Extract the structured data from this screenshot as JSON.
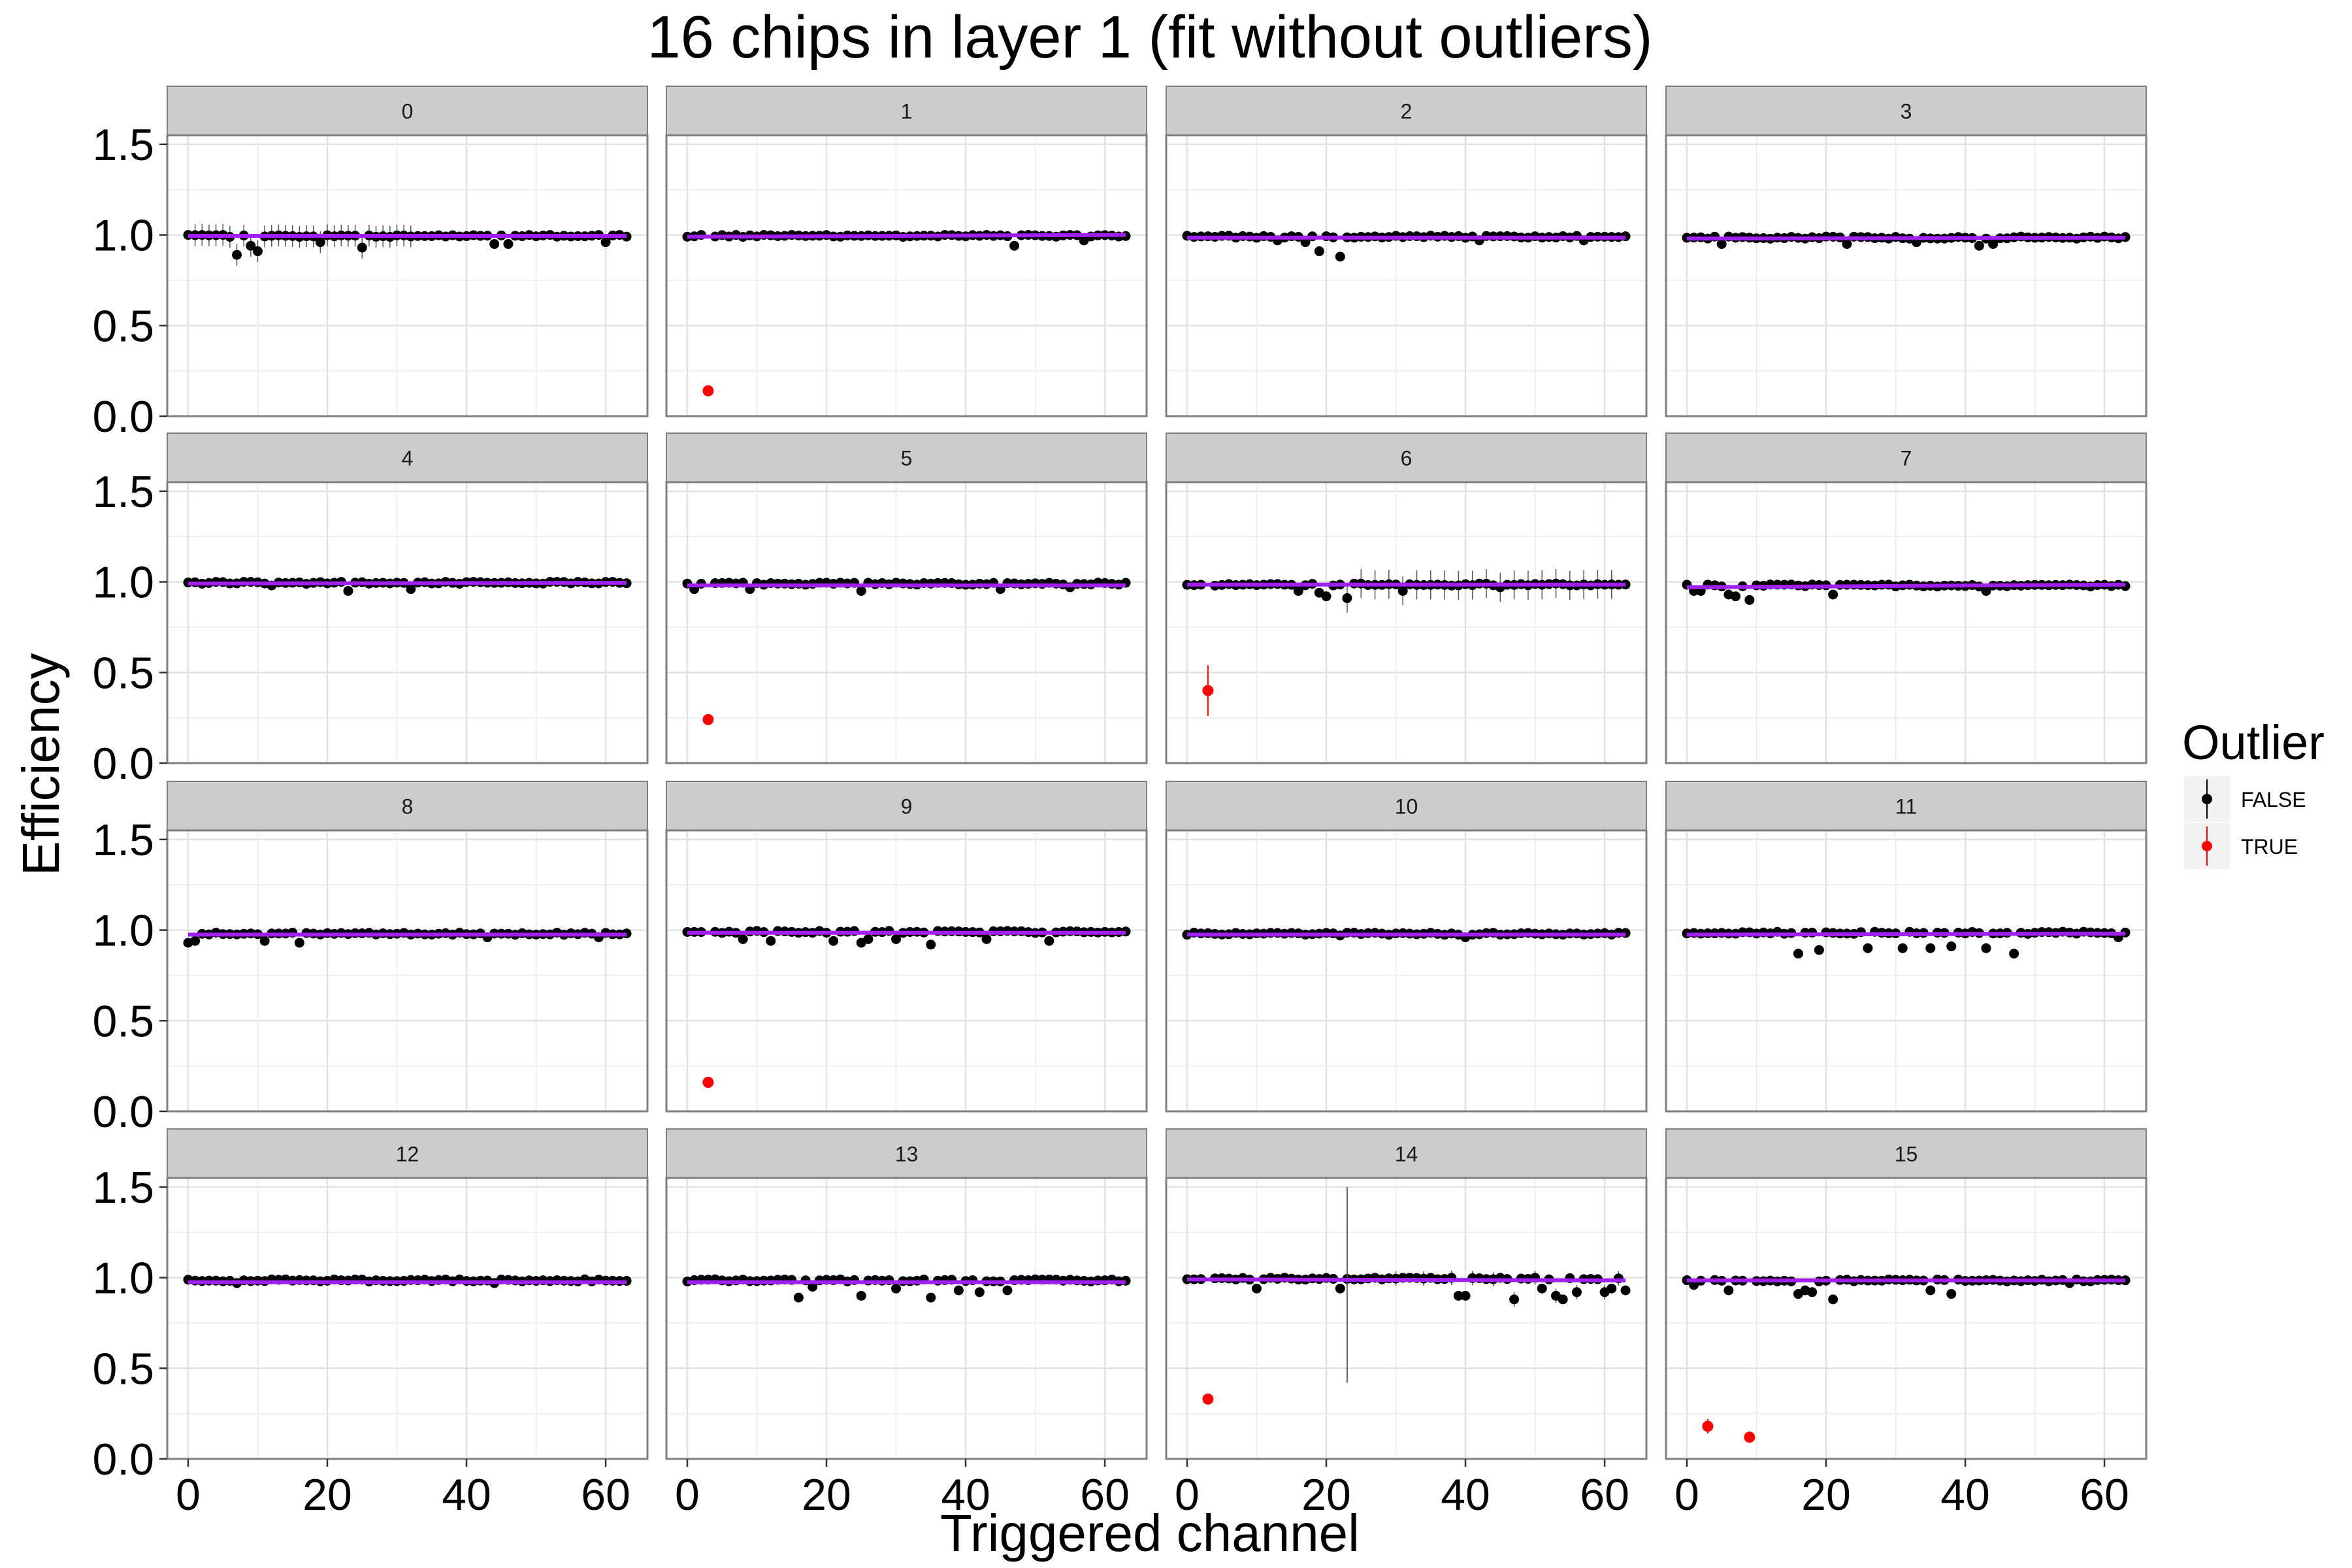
{
  "chart_data": {
    "type": "scatter",
    "title": "16 chips in layer 1 (fit without outliers)",
    "xlabel": "Triggered channel",
    "ylabel": "Efficiency",
    "xlim": [
      -3,
      66
    ],
    "ylim": [
      0,
      1.55
    ],
    "x_ticks": [
      0,
      20,
      40,
      60
    ],
    "x_tick_labels": [
      "0",
      "20",
      "40",
      "60"
    ],
    "y_ticks": [
      0.0,
      0.5,
      1.0,
      1.5
    ],
    "y_tick_labels": [
      "0.0",
      "0.5",
      "1.0",
      "1.5"
    ],
    "grid": true,
    "facet_layout": {
      "rows": 4,
      "cols": 4
    },
    "legend": {
      "title": "Outlier",
      "placement": "right",
      "entries": [
        {
          "label": "FALSE",
          "color": "#000000"
        },
        {
          "label": "TRUE",
          "color": "#ff0000"
        }
      ]
    },
    "colors": {
      "normal_point": "#000000",
      "outlier_point": "#ff0000",
      "fit_line": "#a020f0",
      "strip_fill": "#cccccc",
      "panel_border": "#7f7f7f",
      "grid": "#ebebeb"
    },
    "series_note": "Each facet: efficiency per triggered channel 0-63; most points near 1.0; fit line near 1.0",
    "facets": [
      {
        "label": "0",
        "base": 0.995,
        "fit": [
          0.995,
          0.995
        ],
        "dips": [
          [
            7,
            0.89
          ],
          [
            10,
            0.91
          ],
          [
            9,
            0.94
          ],
          [
            19,
            0.96
          ],
          [
            25,
            0.93
          ],
          [
            44,
            0.95
          ],
          [
            46,
            0.95
          ],
          [
            60,
            0.96
          ]
        ],
        "err_channels": [
          1,
          2,
          3,
          4,
          5,
          6,
          7,
          8,
          9,
          10,
          11,
          12,
          13,
          14,
          15,
          16,
          17,
          18,
          19,
          20,
          21,
          22,
          23,
          24,
          25,
          26,
          27,
          28,
          29,
          30,
          31,
          32
        ],
        "err": 0.06,
        "outliers": []
      },
      {
        "label": "1",
        "base": 0.995,
        "fit": [
          0.99,
          1.0
        ],
        "dips": [
          [
            47,
            0.94
          ],
          [
            57,
            0.97
          ]
        ],
        "err_channels": [],
        "err": 0.0,
        "outliers": [
          [
            3,
            0.14,
            0.0
          ]
        ]
      },
      {
        "label": "2",
        "base": 0.99,
        "fit": [
          0.985,
          0.985
        ],
        "dips": [
          [
            19,
            0.91
          ],
          [
            22,
            0.88
          ],
          [
            17,
            0.96
          ],
          [
            13,
            0.97
          ],
          [
            42,
            0.97
          ],
          [
            57,
            0.97
          ]
        ],
        "err_channels": [],
        "err": 0.0,
        "outliers": []
      },
      {
        "label": "3",
        "base": 0.985,
        "fit": [
          0.98,
          0.985
        ],
        "dips": [
          [
            5,
            0.95
          ],
          [
            23,
            0.95
          ],
          [
            42,
            0.94
          ],
          [
            44,
            0.95
          ],
          [
            33,
            0.96
          ]
        ],
        "err_channels": [],
        "err": 0.0,
        "outliers": []
      },
      {
        "label": "4",
        "base": 0.995,
        "fit": [
          0.99,
          0.995
        ],
        "dips": [
          [
            23,
            0.95
          ],
          [
            32,
            0.96
          ],
          [
            12,
            0.98
          ]
        ],
        "err_channels": [],
        "err": 0.0,
        "outliers": []
      },
      {
        "label": "5",
        "base": 0.99,
        "fit": [
          0.98,
          0.98
        ],
        "dips": [
          [
            1,
            0.96
          ],
          [
            9,
            0.96
          ],
          [
            25,
            0.95
          ],
          [
            45,
            0.96
          ],
          [
            55,
            0.97
          ]
        ],
        "err_channels": [],
        "err": 0.0,
        "outliers": [
          [
            3,
            0.24,
            0.0
          ]
        ]
      },
      {
        "label": "6",
        "base": 0.985,
        "fit": [
          0.985,
          0.985
        ],
        "dips": [
          [
            16,
            0.95
          ],
          [
            19,
            0.94
          ],
          [
            20,
            0.92
          ],
          [
            23,
            0.91
          ],
          [
            31,
            0.95
          ],
          [
            45,
            0.97
          ]
        ],
        "err_channels": [
          23,
          25,
          27,
          29,
          31,
          33,
          35,
          37,
          39,
          41,
          43,
          45,
          47,
          49,
          51,
          53,
          55,
          57,
          59,
          61
        ],
        "err": 0.08,
        "outliers": [
          [
            3,
            0.4,
            0.14
          ]
        ]
      },
      {
        "label": "7",
        "base": 0.98,
        "fit": [
          0.97,
          0.985
        ],
        "dips": [
          [
            1,
            0.95
          ],
          [
            2,
            0.95
          ],
          [
            6,
            0.93
          ],
          [
            7,
            0.92
          ],
          [
            9,
            0.9
          ],
          [
            21,
            0.93
          ],
          [
            43,
            0.95
          ]
        ],
        "err_channels": [],
        "err": 0.0,
        "outliers": []
      },
      {
        "label": "8",
        "base": 0.98,
        "fit": [
          0.975,
          0.975
        ],
        "dips": [
          [
            0,
            0.93
          ],
          [
            1,
            0.94
          ],
          [
            11,
            0.94
          ],
          [
            16,
            0.93
          ],
          [
            43,
            0.96
          ],
          [
            59,
            0.96
          ]
        ],
        "err_channels": [],
        "err": 0.0,
        "outliers": []
      },
      {
        "label": "9",
        "base": 0.99,
        "fit": [
          0.985,
          0.985
        ],
        "dips": [
          [
            3,
            0.96
          ],
          [
            8,
            0.95
          ],
          [
            12,
            0.94
          ],
          [
            21,
            0.94
          ],
          [
            25,
            0.93
          ],
          [
            26,
            0.95
          ],
          [
            30,
            0.95
          ],
          [
            35,
            0.92
          ],
          [
            43,
            0.95
          ],
          [
            52,
            0.94
          ]
        ],
        "err_channels": [],
        "err": 0.0,
        "outliers": [
          [
            3,
            0.16,
            0.0
          ]
        ]
      },
      {
        "label": "10",
        "base": 0.98,
        "fit": [
          0.975,
          0.975
        ],
        "dips": [
          [
            40,
            0.96
          ],
          [
            22,
            0.97
          ]
        ],
        "err_channels": [],
        "err": 0.0,
        "outliers": []
      },
      {
        "label": "11",
        "base": 0.985,
        "fit": [
          0.975,
          0.98
        ],
        "dips": [
          [
            16,
            0.87
          ],
          [
            19,
            0.89
          ],
          [
            26,
            0.9
          ],
          [
            31,
            0.9
          ],
          [
            35,
            0.9
          ],
          [
            38,
            0.91
          ],
          [
            43,
            0.9
          ],
          [
            47,
            0.87
          ],
          [
            62,
            0.96
          ]
        ],
        "err_channels": [],
        "err": 0.0,
        "outliers": []
      },
      {
        "label": "12",
        "base": 0.985,
        "fit": [
          0.975,
          0.975
        ],
        "dips": [
          [
            44,
            0.97
          ],
          [
            7,
            0.97
          ]
        ],
        "err_channels": [],
        "err": 0.0,
        "outliers": []
      },
      {
        "label": "13",
        "base": 0.985,
        "fit": [
          0.975,
          0.975
        ],
        "dips": [
          [
            16,
            0.89
          ],
          [
            18,
            0.95
          ],
          [
            25,
            0.9
          ],
          [
            30,
            0.94
          ],
          [
            35,
            0.89
          ],
          [
            39,
            0.93
          ],
          [
            42,
            0.92
          ],
          [
            46,
            0.93
          ]
        ],
        "err_channels": [],
        "err": 0.0,
        "outliers": []
      },
      {
        "label": "14",
        "base": 0.995,
        "fit": [
          0.99,
          0.985
        ],
        "dips": [
          [
            10,
            0.94
          ],
          [
            22,
            0.94
          ],
          [
            39,
            0.9
          ],
          [
            40,
            0.9
          ],
          [
            47,
            0.88
          ],
          [
            51,
            0.94
          ],
          [
            53,
            0.9
          ],
          [
            54,
            0.88
          ],
          [
            56,
            0.92
          ],
          [
            60,
            0.92
          ],
          [
            61,
            0.94
          ],
          [
            63,
            0.93
          ]
        ],
        "err_channels": [
          23,
          30,
          34,
          38,
          41,
          44,
          47,
          50,
          53,
          56,
          60,
          62
        ],
        "err": 0.04,
        "big_err": [
          [
            23,
            0.96,
            0.54
          ]
        ],
        "outliers": [
          [
            3,
            0.33,
            0.02
          ]
        ]
      },
      {
        "label": "15",
        "base": 0.985,
        "fit": [
          0.985,
          0.985
        ],
        "dips": [
          [
            1,
            0.96
          ],
          [
            6,
            0.93
          ],
          [
            16,
            0.91
          ],
          [
            17,
            0.93
          ],
          [
            18,
            0.92
          ],
          [
            21,
            0.88
          ],
          [
            35,
            0.93
          ],
          [
            38,
            0.91
          ],
          [
            55,
            0.97
          ]
        ],
        "err_channels": [],
        "err": 0.0,
        "outliers": [
          [
            3,
            0.18,
            0.04
          ],
          [
            9,
            0.12,
            0.0
          ]
        ]
      }
    ]
  }
}
